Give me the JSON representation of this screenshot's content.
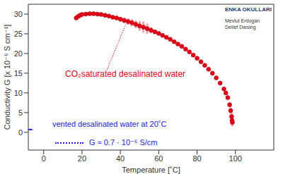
{
  "chart_data": {
    "type": "scatter",
    "x_label": "Temperature [˚C]",
    "y_label": "Conductivity G [x 10⁻⁶ S cm⁻¹]",
    "xlim": [
      -8,
      120
    ],
    "ylim": [
      -4.5,
      32.5
    ],
    "xticks": [
      0,
      20,
      40,
      60,
      80,
      100
    ],
    "yticks": [
      0,
      5,
      10,
      15,
      20,
      25,
      30
    ],
    "grid": false,
    "series": [
      {
        "name": "CO₂saturated desalinated water",
        "color": "#e3001b",
        "marker": "circle",
        "x": [
          17,
          18,
          19,
          20,
          22,
          24,
          26,
          28,
          30,
          32,
          34,
          36,
          38,
          40,
          42,
          44,
          46,
          48,
          50,
          52,
          54,
          56,
          58,
          60,
          62,
          64,
          66,
          68,
          70,
          72,
          74,
          76,
          78,
          80,
          82,
          84,
          86,
          88,
          90,
          92,
          94,
          95,
          96,
          97,
          97.5,
          98,
          98.2,
          98.4
        ],
        "values": [
          29.0,
          29.4,
          29.7,
          29.9,
          30.0,
          30.1,
          30.1,
          30.0,
          29.9,
          29.7,
          29.5,
          29.2,
          29.0,
          28.7,
          28.4,
          28.1,
          27.8,
          27.4,
          27.0,
          26.7,
          26.3,
          25.9,
          25.5,
          25.1,
          24.6,
          24.1,
          23.6,
          23.0,
          22.4,
          21.8,
          21.1,
          20.4,
          19.6,
          18.8,
          17.9,
          17.0,
          16.0,
          15.0,
          13.8,
          12.5,
          11.0,
          10.0,
          8.8,
          7.0,
          5.5,
          4.0,
          3.0,
          2.5
        ],
        "error": [
          0.3,
          0.3,
          0.3,
          0.3,
          0.3,
          0.3,
          0.3,
          0.3,
          0.3,
          0.3,
          0.4,
          0.5,
          0.5,
          0.6,
          0.7,
          0.8,
          0.9,
          1.0,
          1.2,
          1.4,
          1.3,
          0.8,
          0.5,
          0.4,
          0.3,
          0.3,
          0.3,
          0.3,
          0.3,
          0.3,
          0.3,
          0.3,
          0.3,
          0.3,
          0.3,
          0.3,
          0.3,
          0.3,
          0.3,
          0.3,
          0.4,
          0.4,
          0.5,
          0.6,
          0.8,
          1.0,
          1.0,
          1.0
        ]
      },
      {
        "name": "vented desalinated water at 20˚C",
        "color": "#1a1adb",
        "marker": "dash",
        "x": [
          -7
        ],
        "values": [
          0.7
        ]
      }
    ],
    "annotations": [
      "G ≈ 0.7 · 10⁻⁶ S/cm"
    ],
    "logo": {
      "title": "ENKA OKULLARI",
      "authors": [
        "Mevlut Erdogan",
        "Detlef Diesing"
      ]
    }
  }
}
